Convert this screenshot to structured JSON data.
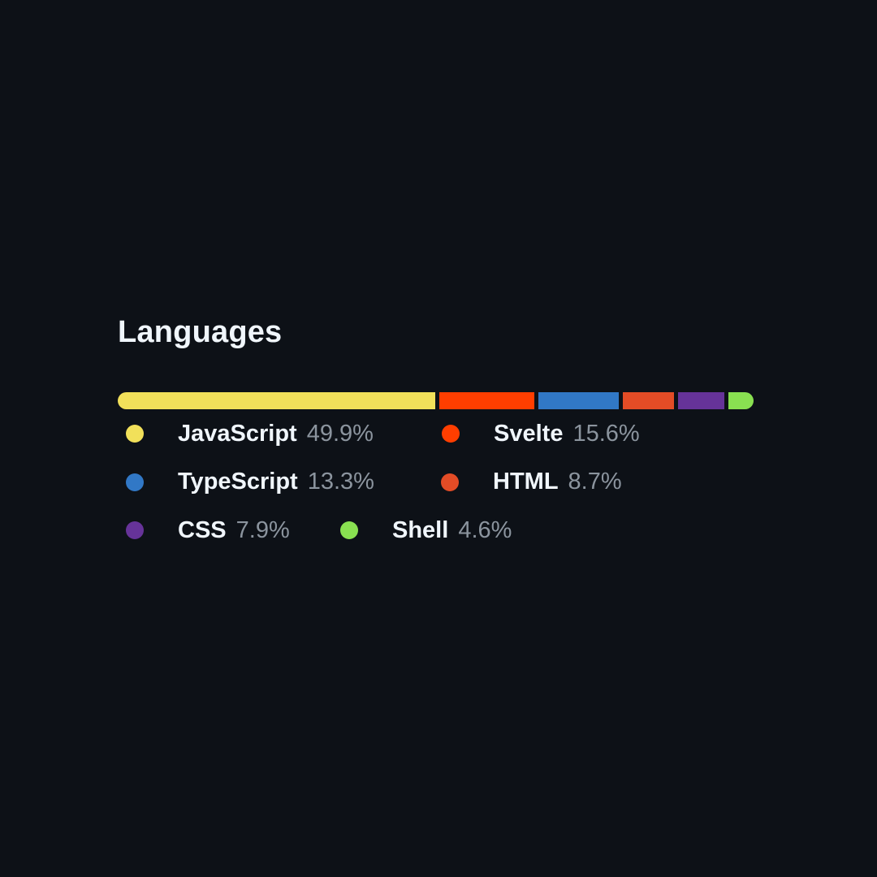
{
  "panel": {
    "title": "Languages"
  },
  "languages": [
    {
      "name": "JavaScript",
      "percent_label": "49.9%",
      "percent": 49.9,
      "color": "#f1e05a"
    },
    {
      "name": "Svelte",
      "percent_label": "15.6%",
      "percent": 15.6,
      "color": "#ff3e00"
    },
    {
      "name": "TypeScript",
      "percent_label": "13.3%",
      "percent": 13.3,
      "color": "#3178c6"
    },
    {
      "name": "HTML",
      "percent_label": "8.7%",
      "percent": 8.7,
      "color": "#e34c26"
    },
    {
      "name": "CSS",
      "percent_label": "7.9%",
      "percent": 7.9,
      "color": "#663399"
    },
    {
      "name": "Shell",
      "percent_label": "4.6%",
      "percent": 4.6,
      "color": "#89e051"
    }
  ]
}
